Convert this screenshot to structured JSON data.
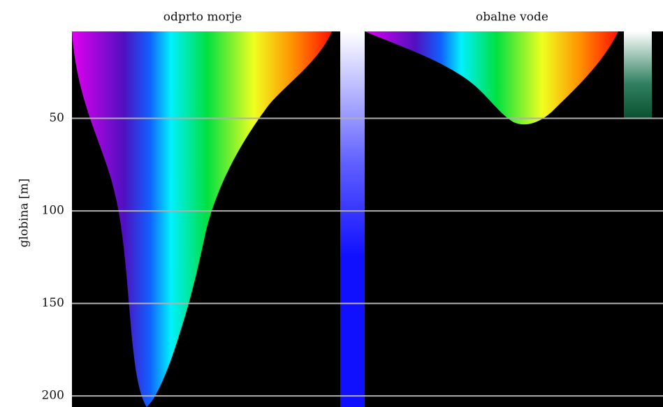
{
  "panels": [
    {
      "title": "odprto morje"
    },
    {
      "title": "obalne vode"
    }
  ],
  "y_axis": {
    "label": "globina [m]",
    "lim": [
      3,
      206
    ],
    "ticks": [
      50,
      100,
      150,
      200
    ]
  }
}
